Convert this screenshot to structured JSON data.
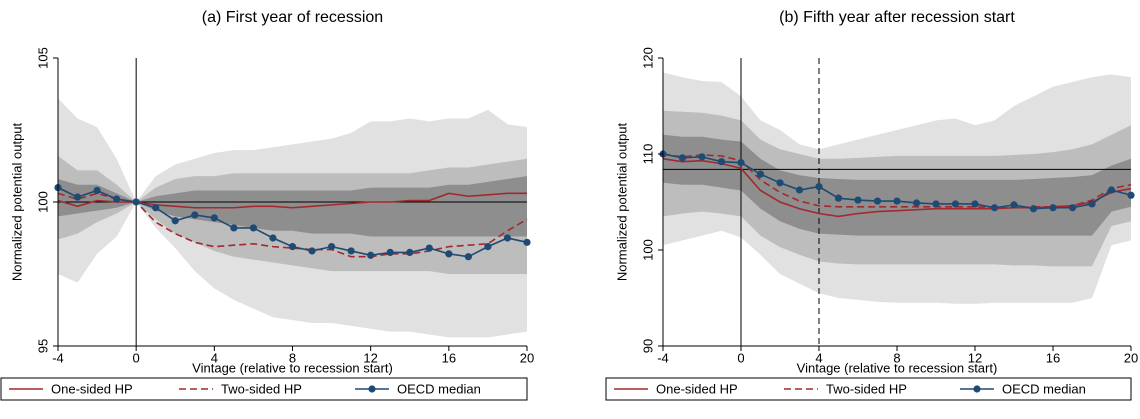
{
  "chart_data": [
    {
      "type": "line",
      "title": "(a) First year of recession",
      "x_label": "Vintage (relative to recession start)",
      "y_label": "Normalized potential output",
      "x": [
        -4,
        -3,
        -2,
        -1,
        0,
        1,
        2,
        3,
        4,
        5,
        6,
        7,
        8,
        9,
        10,
        11,
        12,
        13,
        14,
        15,
        16,
        17,
        18,
        19,
        20
      ],
      "xlim": [
        -4,
        20
      ],
      "xticks": [
        -4,
        0,
        4,
        8,
        12,
        16,
        20
      ],
      "ylim": [
        95,
        105
      ],
      "yticks": [
        95,
        100,
        105
      ],
      "hlines": [
        100
      ],
      "vlines": [
        0
      ],
      "dashed_vlines": [],
      "bands": [
        {
          "color": "#e1e1e1",
          "upper": [
            103.6,
            102.9,
            102.6,
            101.5,
            100,
            100.9,
            101.3,
            101.5,
            101.7,
            101.8,
            101.8,
            101.9,
            102.0,
            102.1,
            102.2,
            102.4,
            102.8,
            102.8,
            102.9,
            102.8,
            102.9,
            102.9,
            103.2,
            102.7,
            102.6
          ],
          "lower": [
            97.5,
            97.2,
            98.2,
            98.8,
            100,
            99.1,
            98.4,
            97.6,
            97.0,
            96.6,
            96.3,
            96.0,
            95.9,
            95.8,
            95.8,
            95.7,
            95.6,
            95.5,
            95.5,
            95.4,
            95.3,
            95.3,
            95.3,
            95.4,
            95.5
          ]
        },
        {
          "color": "#bdbdbd",
          "upper": [
            101.6,
            101.1,
            101.1,
            100.6,
            100,
            100.5,
            100.8,
            100.9,
            100.9,
            101.0,
            101.0,
            101.0,
            101.0,
            101.0,
            101.0,
            101.0,
            101.0,
            101.0,
            101.0,
            101.1,
            101.2,
            101.2,
            101.3,
            101.4,
            101.5
          ],
          "lower": [
            98.7,
            98.9,
            99.3,
            99.6,
            100,
            99.4,
            98.9,
            98.6,
            98.3,
            98.1,
            98.0,
            97.9,
            97.8,
            97.7,
            97.6,
            97.6,
            97.6,
            97.6,
            97.6,
            97.6,
            97.5,
            97.5,
            97.5,
            97.5,
            97.5
          ]
        },
        {
          "color": "#8e8e8e",
          "upper": [
            100.8,
            100.6,
            100.6,
            100.3,
            100,
            100.2,
            100.3,
            100.4,
            100.4,
            100.4,
            100.4,
            100.4,
            100.4,
            100.4,
            100.4,
            100.4,
            100.5,
            100.5,
            100.5,
            100.5,
            100.6,
            100.6,
            100.7,
            100.8,
            100.9
          ],
          "lower": [
            99.5,
            99.6,
            99.7,
            99.8,
            100,
            99.7,
            99.5,
            99.4,
            99.3,
            99.2,
            99.1,
            99.0,
            99.0,
            98.9,
            98.9,
            98.9,
            98.8,
            98.8,
            98.8,
            98.8,
            98.8,
            98.8,
            98.8,
            98.8,
            98.8
          ]
        }
      ],
      "series": [
        {
          "name": "One-sided HP",
          "color": "#a3292e",
          "style": "solid",
          "marker": false,
          "values": [
            100.05,
            99.85,
            100.05,
            100.0,
            100.0,
            99.9,
            99.85,
            99.8,
            99.8,
            99.8,
            99.85,
            99.85,
            99.8,
            99.85,
            99.9,
            99.95,
            100.0,
            100.0,
            100.05,
            100.05,
            100.3,
            100.2,
            100.25,
            100.3,
            100.3
          ]
        },
        {
          "name": "Two-sided HP",
          "color": "#a3292e",
          "style": "dashed",
          "marker": false,
          "values": [
            100.3,
            100.1,
            100.3,
            100.1,
            100.0,
            99.3,
            98.9,
            98.6,
            98.45,
            98.5,
            98.55,
            98.45,
            98.4,
            98.35,
            98.35,
            98.1,
            98.1,
            98.2,
            98.2,
            98.3,
            98.45,
            98.5,
            98.55,
            99.0,
            99.4
          ]
        },
        {
          "name": "OECD median",
          "color": "#1f4a74",
          "style": "solid",
          "marker": true,
          "values": [
            100.5,
            100.17,
            100.4,
            100.1,
            100.0,
            99.8,
            99.35,
            99.55,
            99.45,
            99.1,
            99.1,
            98.75,
            98.45,
            98.3,
            98.45,
            98.3,
            98.15,
            98.25,
            98.25,
            98.4,
            98.2,
            98.1,
            98.45,
            98.75,
            98.6
          ]
        }
      ]
    },
    {
      "type": "line",
      "title": "(b) Fifth year after recession start",
      "x_label": "Vintage (relative to recession start)",
      "y_label": "Normalized potential output",
      "x": [
        -4,
        -3,
        -2,
        -1,
        0,
        1,
        2,
        3,
        4,
        5,
        6,
        7,
        8,
        9,
        10,
        11,
        12,
        13,
        14,
        15,
        16,
        17,
        18,
        19,
        20
      ],
      "xlim": [
        -4,
        20
      ],
      "xticks": [
        -4,
        0,
        4,
        8,
        12,
        16,
        20
      ],
      "ylim": [
        90,
        120
      ],
      "yticks": [
        90,
        100,
        110,
        120
      ],
      "hlines": [
        108.4
      ],
      "vlines": [
        0
      ],
      "dashed_vlines": [
        4
      ],
      "bands": [
        {
          "color": "#e1e1e1",
          "upper": [
            118.5,
            118.0,
            117.6,
            117.5,
            116.0,
            113.5,
            112.5,
            111.0,
            110.5,
            111.0,
            111.5,
            112.0,
            112.5,
            113.0,
            113.5,
            113.7,
            113.0,
            113.5,
            115.0,
            116.0,
            117.0,
            117.5,
            118.0,
            118.3,
            118.0
          ],
          "lower": [
            100.5,
            101.0,
            101.5,
            102.0,
            101.3,
            99.5,
            97.5,
            96.5,
            95.5,
            95.0,
            94.8,
            94.6,
            94.5,
            94.5,
            94.5,
            94.4,
            94.4,
            94.5,
            94.5,
            94.5,
            94.5,
            94.5,
            95.0,
            100.5,
            101.0
          ]
        },
        {
          "color": "#bdbdbd",
          "upper": [
            114.5,
            114.4,
            114.3,
            114.0,
            113.5,
            111.5,
            110.5,
            110.0,
            109.5,
            109.5,
            109.6,
            109.7,
            109.8,
            109.8,
            109.8,
            109.8,
            109.8,
            109.8,
            109.9,
            110.0,
            110.2,
            110.5,
            111.0,
            112.0,
            113.0
          ],
          "lower": [
            103.5,
            103.8,
            104.0,
            103.8,
            103.5,
            101.5,
            100.3,
            99.5,
            98.8,
            98.6,
            98.5,
            98.5,
            98.5,
            98.5,
            98.5,
            98.5,
            98.5,
            98.5,
            98.4,
            98.4,
            98.3,
            98.3,
            98.3,
            102.5,
            103.0
          ]
        },
        {
          "color": "#8e8e8e",
          "upper": [
            112.0,
            111.8,
            111.8,
            111.5,
            111.3,
            109.5,
            108.3,
            107.8,
            107.5,
            107.4,
            107.3,
            107.3,
            107.3,
            107.3,
            107.3,
            107.3,
            107.3,
            107.3,
            107.3,
            107.4,
            107.5,
            107.6,
            107.8,
            108.8,
            109.5
          ],
          "lower": [
            107.0,
            106.8,
            106.8,
            106.5,
            106.2,
            104.3,
            103.0,
            102.2,
            101.7,
            101.6,
            101.5,
            101.5,
            101.5,
            101.5,
            101.5,
            101.5,
            101.5,
            101.5,
            101.5,
            101.5,
            101.5,
            101.5,
            101.5,
            104.0,
            104.5
          ]
        }
      ],
      "series": [
        {
          "name": "One-sided HP",
          "color": "#a3292e",
          "style": "solid",
          "marker": false,
          "values": [
            109.5,
            109.2,
            109.3,
            109.0,
            108.5,
            106.2,
            105.0,
            104.3,
            103.8,
            103.5,
            103.8,
            104.0,
            104.1,
            104.2,
            104.3,
            104.3,
            104.3,
            104.3,
            104.4,
            104.4,
            104.5,
            104.6,
            105.0,
            106.0,
            106.4
          ]
        },
        {
          "name": "Two-sided HP",
          "color": "#a3292e",
          "style": "dashed",
          "marker": false,
          "values": [
            110.0,
            109.7,
            109.9,
            109.8,
            109.3,
            107.3,
            106.0,
            105.1,
            104.6,
            104.5,
            104.5,
            104.5,
            104.5,
            104.5,
            104.5,
            104.5,
            104.5,
            104.4,
            104.4,
            104.5,
            104.5,
            104.6,
            105.2,
            106.4,
            106.8
          ]
        },
        {
          "name": "OECD median",
          "color": "#1f4a74",
          "style": "solid",
          "marker": true,
          "values": [
            110.0,
            109.6,
            109.7,
            109.2,
            109.1,
            107.9,
            107.0,
            106.25,
            106.6,
            105.4,
            105.2,
            105.1,
            105.1,
            104.9,
            104.8,
            104.8,
            104.8,
            104.4,
            104.7,
            104.3,
            104.4,
            104.4,
            104.8,
            106.25,
            105.7
          ]
        }
      ]
    }
  ]
}
